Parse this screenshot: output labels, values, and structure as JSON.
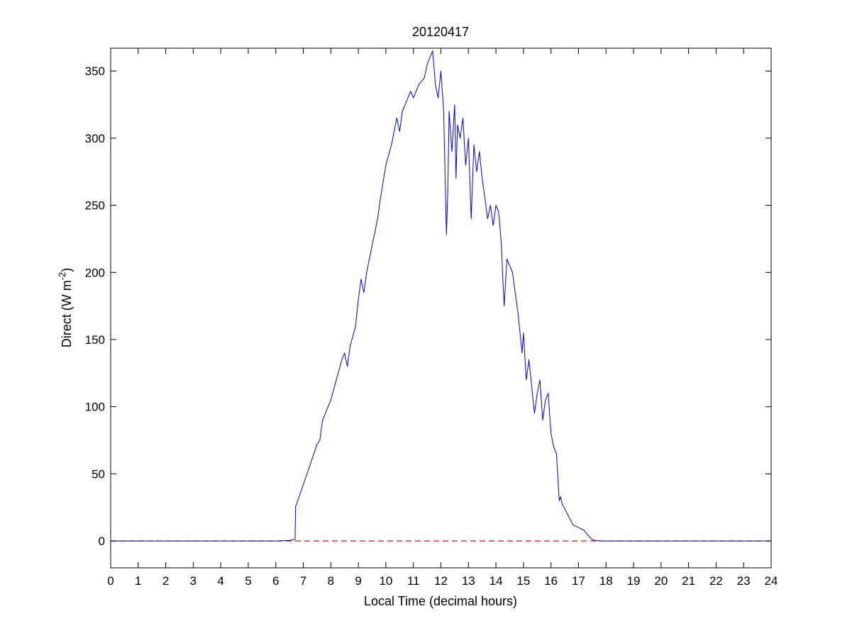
{
  "chart_data": {
    "type": "line",
    "title": "20120417",
    "xlabel": "Local Time (decimal hours)",
    "ylabel": {
      "prefix": "Direct (W m",
      "superscript": "-2",
      "suffix": ")"
    },
    "xlim": [
      0,
      24
    ],
    "ylim": [
      -20,
      367
    ],
    "xticks": [
      0,
      1,
      2,
      3,
      4,
      5,
      6,
      7,
      8,
      9,
      10,
      11,
      12,
      13,
      14,
      15,
      16,
      17,
      18,
      19,
      20,
      21,
      22,
      23,
      24
    ],
    "yticks": [
      0,
      50,
      100,
      150,
      200,
      250,
      300,
      350
    ],
    "grid": false,
    "legend": "none",
    "colors": {
      "series": "#0000cc",
      "reference": "#ff0000",
      "axes": "#000000"
    },
    "reference_line": {
      "y": 0,
      "style": "dashed"
    },
    "series": [
      {
        "x": [
          0,
          1,
          2,
          3,
          4,
          5,
          6,
          6.5,
          6.7,
          6.72,
          6.75,
          7.0,
          7.3,
          7.5,
          7.6,
          7.7,
          8.0,
          8.2,
          8.4,
          8.5,
          8.6,
          8.7,
          8.9,
          9.0,
          9.1,
          9.2,
          9.3,
          9.5,
          9.7,
          9.8,
          10.0,
          10.2,
          10.4,
          10.5,
          10.6,
          10.8,
          10.9,
          11.0,
          11.2,
          11.4,
          11.5,
          11.6,
          11.7,
          11.8,
          11.9,
          12.0,
          12.1,
          12.2,
          12.25,
          12.3,
          12.4,
          12.5,
          12.55,
          12.6,
          12.7,
          12.8,
          12.9,
          13.0,
          13.1,
          13.2,
          13.3,
          13.4,
          13.5,
          13.6,
          13.7,
          13.8,
          13.9,
          14.0,
          14.1,
          14.2,
          14.25,
          14.3,
          14.4,
          14.5,
          14.6,
          14.7,
          14.8,
          14.9,
          14.95,
          15.0,
          15.1,
          15.2,
          15.3,
          15.4,
          15.5,
          15.6,
          15.7,
          15.8,
          15.9,
          16.0,
          16.1,
          16.2,
          16.3,
          16.35,
          16.4,
          16.6,
          16.8,
          17.0,
          17.2,
          17.4,
          17.5,
          17.6,
          17.8,
          18,
          19,
          20,
          21,
          22,
          23,
          24
        ],
        "y": [
          0,
          0,
          0,
          0,
          0,
          0,
          0,
          0.5,
          1,
          26,
          27,
          42,
          60,
          72,
          75,
          90,
          105,
          120,
          135,
          140,
          130,
          145,
          160,
          180,
          195,
          185,
          200,
          220,
          240,
          255,
          280,
          295,
          315,
          305,
          320,
          330,
          335,
          330,
          340,
          345,
          355,
          360,
          365,
          340,
          330,
          350,
          320,
          228,
          260,
          320,
          290,
          325,
          270,
          310,
          300,
          315,
          280,
          300,
          240,
          295,
          275,
          290,
          270,
          255,
          240,
          250,
          235,
          250,
          245,
          220,
          195,
          175,
          210,
          205,
          200,
          185,
          170,
          150,
          140,
          155,
          120,
          135,
          115,
          95,
          110,
          120,
          90,
          105,
          110,
          80,
          70,
          65,
          30,
          33,
          28,
          20,
          12,
          10,
          8,
          3,
          1,
          0.5,
          0,
          0,
          0,
          0,
          0,
          0,
          0,
          0
        ]
      }
    ]
  }
}
